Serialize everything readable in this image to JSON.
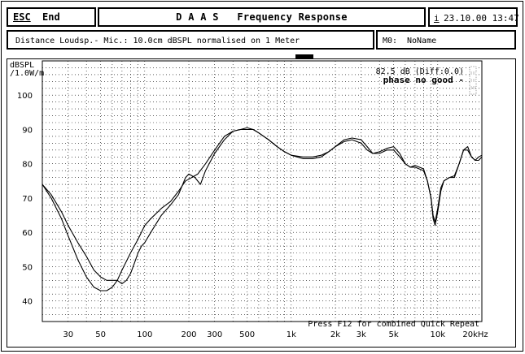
{
  "header": {
    "esc_label": "ESC",
    "end_label": "End",
    "title": "D A A S   Frequency Response",
    "info_icon_letter": "i",
    "datetime": "23.10.00 13:47"
  },
  "subheader": {
    "description": "Distance Loudsp.- Mic.: 10.0cm dBSPL normalised on 1 Meter",
    "memory_slot": "M0:",
    "memory_name": "NoName"
  },
  "chart_data": {
    "type": "line",
    "ylabel_line1": "dBSPL",
    "ylabel_line2": "/1.0W/m",
    "x_scale": "log",
    "xlim": [
      20,
      20000
    ],
    "ylim": [
      34,
      110
    ],
    "grid": true,
    "y_ticks": [
      40,
      50,
      60,
      70,
      80,
      90,
      100
    ],
    "y_tick_labels": [
      "40",
      "50",
      "60",
      "70",
      "80",
      "90",
      "100"
    ],
    "x_ticks": [
      30,
      50,
      100,
      200,
      300,
      500,
      1000,
      2000,
      3000,
      5000,
      10000,
      20000
    ],
    "x_tick_labels": [
      "30",
      "50",
      "100",
      "200",
      "300",
      "500",
      "1k",
      "2k",
      "3k",
      "5k",
      "10k",
      "20kHz"
    ],
    "readout": "82.5 dB (Diff:0.0)",
    "warning": "phase no good -",
    "footer_hint": "Press F12 for combined Quick Repeat",
    "series": [
      {
        "color": "#000000",
        "points": [
          [
            20,
            74
          ],
          [
            23,
            70
          ],
          [
            27,
            64
          ],
          [
            30,
            59
          ],
          [
            35,
            52
          ],
          [
            40,
            47
          ],
          [
            45,
            44
          ],
          [
            50,
            43
          ],
          [
            55,
            43
          ],
          [
            60,
            44
          ],
          [
            65,
            46
          ],
          [
            70,
            49
          ],
          [
            80,
            54
          ],
          [
            90,
            58
          ],
          [
            100,
            62
          ],
          [
            110,
            64
          ],
          [
            130,
            67
          ],
          [
            150,
            69
          ],
          [
            170,
            72
          ],
          [
            190,
            75
          ],
          [
            200,
            75.5
          ],
          [
            230,
            77
          ],
          [
            260,
            80
          ],
          [
            300,
            84
          ],
          [
            350,
            88
          ],
          [
            400,
            89.5
          ],
          [
            450,
            90
          ],
          [
            500,
            90
          ],
          [
            550,
            90
          ],
          [
            600,
            89
          ],
          [
            700,
            87
          ],
          [
            800,
            85
          ],
          [
            900,
            83.5
          ],
          [
            1000,
            82.5
          ],
          [
            1200,
            82
          ],
          [
            1400,
            82
          ],
          [
            1600,
            82.5
          ],
          [
            1800,
            83.5
          ],
          [
            2000,
            85
          ],
          [
            2300,
            87
          ],
          [
            2600,
            87.5
          ],
          [
            3000,
            87
          ],
          [
            3300,
            85
          ],
          [
            3600,
            83
          ],
          [
            4000,
            83
          ],
          [
            4500,
            84
          ],
          [
            5000,
            84
          ],
          [
            5500,
            82
          ],
          [
            6000,
            80
          ],
          [
            6500,
            79
          ],
          [
            7000,
            79
          ],
          [
            8000,
            78
          ],
          [
            8500,
            75
          ],
          [
            9000,
            70
          ],
          [
            9300,
            65
          ],
          [
            9600,
            63
          ],
          [
            10000,
            67
          ],
          [
            10500,
            73
          ],
          [
            11000,
            75
          ],
          [
            12000,
            76
          ],
          [
            13000,
            76
          ],
          [
            14000,
            80
          ],
          [
            15000,
            84
          ],
          [
            16000,
            84
          ],
          [
            17000,
            82
          ],
          [
            18000,
            81
          ],
          [
            19000,
            82
          ],
          [
            20000,
            82.5
          ]
        ]
      },
      {
        "color": "#000000",
        "points": [
          [
            20,
            74
          ],
          [
            23,
            71
          ],
          [
            27,
            66
          ],
          [
            30,
            62
          ],
          [
            35,
            57
          ],
          [
            40,
            53
          ],
          [
            45,
            49
          ],
          [
            50,
            47
          ],
          [
            55,
            46
          ],
          [
            60,
            46
          ],
          [
            65,
            46
          ],
          [
            70,
            45
          ],
          [
            75,
            46
          ],
          [
            80,
            48
          ],
          [
            85,
            51
          ],
          [
            90,
            54
          ],
          [
            95,
            56
          ],
          [
            100,
            57
          ],
          [
            110,
            60
          ],
          [
            130,
            65
          ],
          [
            150,
            68
          ],
          [
            170,
            71
          ],
          [
            190,
            76
          ],
          [
            200,
            77
          ],
          [
            220,
            76
          ],
          [
            240,
            74
          ],
          [
            260,
            78
          ],
          [
            300,
            83
          ],
          [
            350,
            87
          ],
          [
            400,
            89.5
          ],
          [
            450,
            90
          ],
          [
            500,
            90.5
          ],
          [
            550,
            90
          ],
          [
            600,
            89
          ],
          [
            700,
            87
          ],
          [
            800,
            85
          ],
          [
            900,
            83.5
          ],
          [
            1000,
            82.5
          ],
          [
            1200,
            81.5
          ],
          [
            1400,
            81.5
          ],
          [
            1600,
            82
          ],
          [
            1800,
            83.5
          ],
          [
            2000,
            85
          ],
          [
            2300,
            86.5
          ],
          [
            2600,
            87
          ],
          [
            3000,
            86
          ],
          [
            3300,
            84
          ],
          [
            3600,
            83
          ],
          [
            4000,
            83.5
          ],
          [
            4500,
            84.5
          ],
          [
            5000,
            85
          ],
          [
            5500,
            83
          ],
          [
            6000,
            80
          ],
          [
            6500,
            79
          ],
          [
            7000,
            79.5
          ],
          [
            8000,
            78.5
          ],
          [
            8500,
            75
          ],
          [
            9000,
            70
          ],
          [
            9300,
            64
          ],
          [
            9600,
            62
          ],
          [
            10000,
            66
          ],
          [
            10500,
            72
          ],
          [
            11000,
            75
          ],
          [
            12000,
            76
          ],
          [
            13000,
            76.5
          ],
          [
            14000,
            80
          ],
          [
            15000,
            84
          ],
          [
            16000,
            85
          ],
          [
            17000,
            82
          ],
          [
            18000,
            81
          ],
          [
            19000,
            81
          ],
          [
            20000,
            82
          ]
        ]
      }
    ]
  }
}
